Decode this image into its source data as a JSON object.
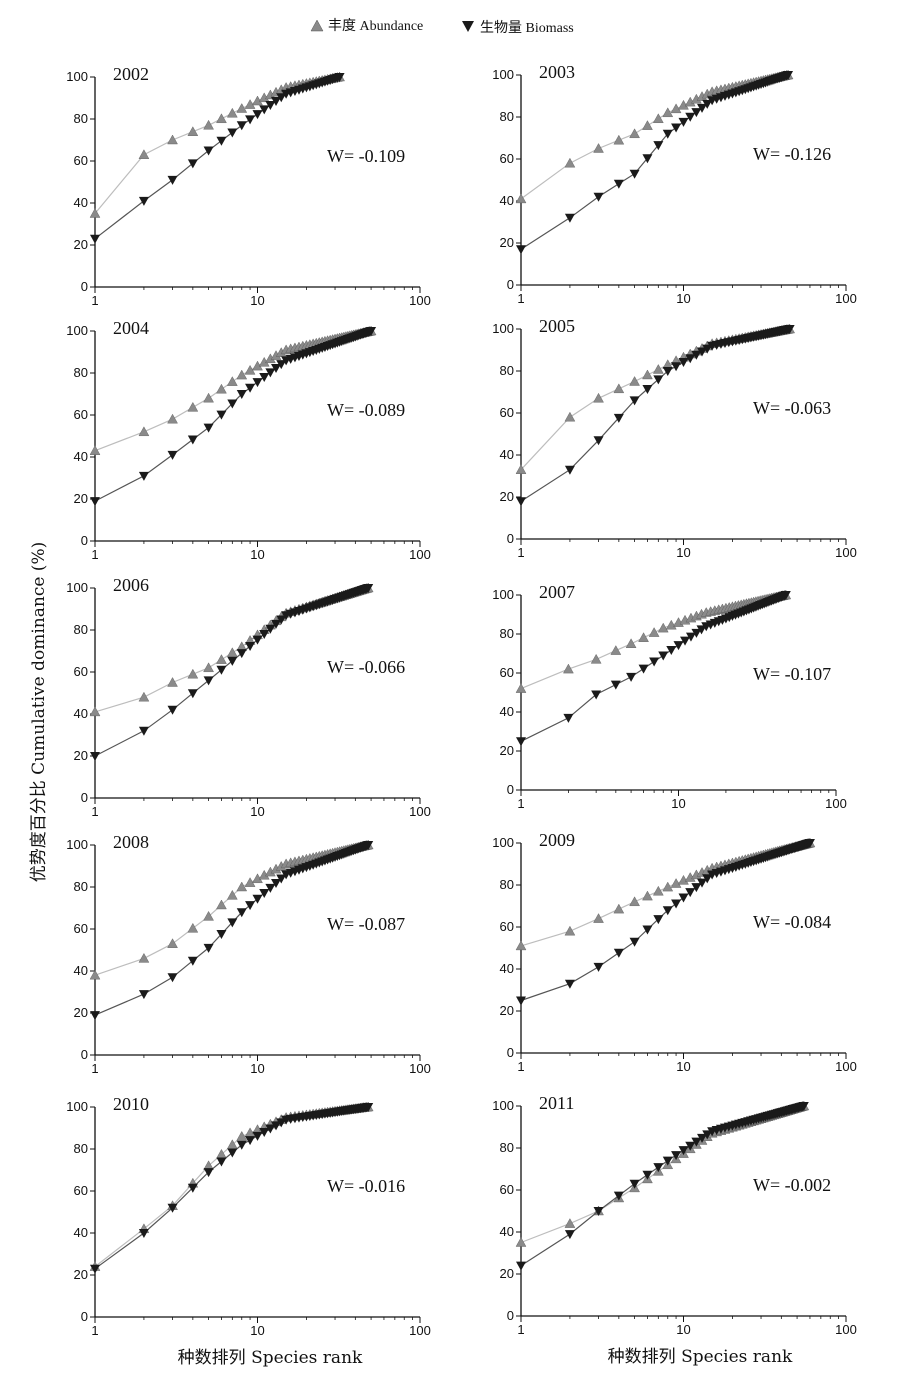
{
  "legend": {
    "abundance_label": "丰度 Abundance",
    "biomass_label": "生物量 Biomass"
  },
  "y_axis_title": "优势度百分比 Cumulative dominance (%)",
  "x_axis_title_left": "种数排列 Species rank",
  "x_axis_title_right": "种数排列 Species rank",
  "colors": {
    "abundance": "#8a8a8a",
    "abundance_line": "#bdbdbd",
    "biomass": "#1a1a1a",
    "biomass_line": "#555555",
    "axis": "#111111"
  },
  "chart_data": [
    {
      "type": "line",
      "title": "2002",
      "annotation": "W= -0.109",
      "xscale": "log",
      "xlim": [
        1,
        100
      ],
      "ylim": [
        0,
        100
      ],
      "xticks": [
        "1",
        "10",
        "100"
      ],
      "yticks": [
        "0",
        "20",
        "40",
        "60",
        "80",
        "100"
      ],
      "n_species": 32,
      "abundance_anchors": [
        [
          1,
          35
        ],
        [
          2,
          63
        ],
        [
          3,
          70
        ],
        [
          5,
          77
        ],
        [
          8,
          85
        ],
        [
          15,
          95
        ],
        [
          32,
          100
        ]
      ],
      "biomass_anchors": [
        [
          1,
          23
        ],
        [
          2,
          41
        ],
        [
          3,
          51
        ],
        [
          5,
          65
        ],
        [
          8,
          77
        ],
        [
          15,
          92
        ],
        [
          32,
          100
        ]
      ],
      "series": [
        {
          "name": "丰度 Abundance"
        },
        {
          "name": "生物量 Biomass"
        }
      ]
    },
    {
      "type": "line",
      "title": "2003",
      "annotation": "W= -0.126",
      "xscale": "log",
      "xlim": [
        1,
        100
      ],
      "ylim": [
        0,
        100
      ],
      "xticks": [
        "1",
        "10",
        "100"
      ],
      "yticks": [
        "0",
        "20",
        "40",
        "60",
        "80",
        "100"
      ],
      "n_species": 44,
      "abundance_anchors": [
        [
          1,
          41
        ],
        [
          2,
          58
        ],
        [
          3,
          65
        ],
        [
          5,
          72
        ],
        [
          8,
          82
        ],
        [
          15,
          92
        ],
        [
          44,
          100
        ]
      ],
      "biomass_anchors": [
        [
          1,
          17
        ],
        [
          2,
          32
        ],
        [
          3,
          42
        ],
        [
          5,
          53
        ],
        [
          8,
          72
        ],
        [
          15,
          88
        ],
        [
          44,
          100
        ]
      ],
      "series": [
        {
          "name": "丰度 Abundance"
        },
        {
          "name": "生物量 Biomass"
        }
      ]
    },
    {
      "type": "line",
      "title": "2004",
      "annotation": "W= -0.089",
      "xscale": "log",
      "xlim": [
        1,
        100
      ],
      "ylim": [
        0,
        100
      ],
      "xticks": [
        "1",
        "10",
        "100"
      ],
      "yticks": [
        "0",
        "20",
        "40",
        "60",
        "80",
        "100"
      ],
      "n_species": 50,
      "abundance_anchors": [
        [
          1,
          43
        ],
        [
          2,
          52
        ],
        [
          3,
          58
        ],
        [
          5,
          68
        ],
        [
          8,
          79
        ],
        [
          15,
          91
        ],
        [
          50,
          100
        ]
      ],
      "biomass_anchors": [
        [
          1,
          19
        ],
        [
          2,
          31
        ],
        [
          3,
          41
        ],
        [
          5,
          54
        ],
        [
          8,
          70
        ],
        [
          15,
          86
        ],
        [
          50,
          100
        ]
      ],
      "series": [
        {
          "name": "丰度 Abundance"
        },
        {
          "name": "生物量 Biomass"
        }
      ]
    },
    {
      "type": "line",
      "title": "2005",
      "annotation": "W= -0.063",
      "xscale": "log",
      "xlim": [
        1,
        100
      ],
      "ylim": [
        0,
        100
      ],
      "xticks": [
        "1",
        "10",
        "100"
      ],
      "yticks": [
        "0",
        "20",
        "40",
        "60",
        "80",
        "100"
      ],
      "n_species": 45,
      "abundance_anchors": [
        [
          1,
          33
        ],
        [
          2,
          58
        ],
        [
          3,
          67
        ],
        [
          5,
          75
        ],
        [
          8,
          83
        ],
        [
          15,
          93
        ],
        [
          45,
          100
        ]
      ],
      "biomass_anchors": [
        [
          1,
          18
        ],
        [
          2,
          33
        ],
        [
          3,
          47
        ],
        [
          5,
          66
        ],
        [
          8,
          80
        ],
        [
          15,
          92
        ],
        [
          45,
          100
        ]
      ],
      "series": [
        {
          "name": "丰度 Abundance"
        },
        {
          "name": "生物量 Biomass"
        }
      ]
    },
    {
      "type": "line",
      "title": "2006",
      "annotation": "W= -0.066",
      "xscale": "log",
      "xlim": [
        1,
        100
      ],
      "ylim": [
        0,
        100
      ],
      "xticks": [
        "1",
        "10",
        "100"
      ],
      "yticks": [
        "0",
        "20",
        "40",
        "60",
        "80",
        "100"
      ],
      "n_species": 48,
      "abundance_anchors": [
        [
          1,
          41
        ],
        [
          2,
          48
        ],
        [
          3,
          55
        ],
        [
          5,
          62
        ],
        [
          8,
          72
        ],
        [
          15,
          88
        ],
        [
          48,
          100
        ]
      ],
      "biomass_anchors": [
        [
          1,
          20
        ],
        [
          2,
          32
        ],
        [
          3,
          42
        ],
        [
          5,
          56
        ],
        [
          8,
          69
        ],
        [
          15,
          87
        ],
        [
          48,
          100
        ]
      ],
      "series": [
        {
          "name": "丰度 Abundance"
        },
        {
          "name": "生物量 Biomass"
        }
      ]
    },
    {
      "type": "line",
      "title": "2007",
      "annotation": "W= -0.107",
      "xscale": "log",
      "xlim": [
        1,
        100
      ],
      "ylim": [
        0,
        100
      ],
      "xticks": [
        "1",
        "10",
        "100"
      ],
      "yticks": [
        "0",
        "20",
        "40",
        "60",
        "80",
        "100"
      ],
      "n_species": 48,
      "abundance_anchors": [
        [
          1,
          52
        ],
        [
          2,
          62
        ],
        [
          3,
          67
        ],
        [
          5,
          75
        ],
        [
          8,
          83
        ],
        [
          15,
          91
        ],
        [
          48,
          100
        ]
      ],
      "biomass_anchors": [
        [
          1,
          25
        ],
        [
          2,
          37
        ],
        [
          3,
          49
        ],
        [
          5,
          58
        ],
        [
          8,
          69
        ],
        [
          15,
          84
        ],
        [
          48,
          100
        ]
      ],
      "series": [
        {
          "name": "丰度 Abundance"
        },
        {
          "name": "生物量 Biomass"
        }
      ]
    },
    {
      "type": "line",
      "title": "2008",
      "annotation": "W= -0.087",
      "xscale": "log",
      "xlim": [
        1,
        100
      ],
      "ylim": [
        0,
        100
      ],
      "xticks": [
        "1",
        "10",
        "100"
      ],
      "yticks": [
        "0",
        "20",
        "40",
        "60",
        "80",
        "100"
      ],
      "n_species": 48,
      "abundance_anchors": [
        [
          1,
          38
        ],
        [
          2,
          46
        ],
        [
          3,
          53
        ],
        [
          5,
          66
        ],
        [
          8,
          80
        ],
        [
          15,
          91
        ],
        [
          48,
          100
        ]
      ],
      "biomass_anchors": [
        [
          1,
          19
        ],
        [
          2,
          29
        ],
        [
          3,
          37
        ],
        [
          5,
          51
        ],
        [
          8,
          68
        ],
        [
          15,
          86
        ],
        [
          48,
          100
        ]
      ],
      "series": [
        {
          "name": "丰度 Abundance"
        },
        {
          "name": "生物量 Biomass"
        }
      ]
    },
    {
      "type": "line",
      "title": "2009",
      "annotation": "W= -0.084",
      "xscale": "log",
      "xlim": [
        1,
        100
      ],
      "ylim": [
        0,
        100
      ],
      "xticks": [
        "1",
        "10",
        "100"
      ],
      "yticks": [
        "0",
        "20",
        "40",
        "60",
        "80",
        "100"
      ],
      "n_species": 60,
      "abundance_anchors": [
        [
          1,
          51
        ],
        [
          2,
          58
        ],
        [
          3,
          64
        ],
        [
          5,
          72
        ],
        [
          8,
          79
        ],
        [
          15,
          88
        ],
        [
          60,
          100
        ]
      ],
      "biomass_anchors": [
        [
          1,
          25
        ],
        [
          2,
          33
        ],
        [
          3,
          41
        ],
        [
          5,
          53
        ],
        [
          8,
          68
        ],
        [
          15,
          85
        ],
        [
          60,
          100
        ]
      ],
      "series": [
        {
          "name": "丰度 Abundance"
        },
        {
          "name": "生物量 Biomass"
        }
      ]
    },
    {
      "type": "line",
      "title": "2010",
      "annotation": "W= -0.016",
      "xscale": "log",
      "xlim": [
        1,
        100
      ],
      "ylim": [
        0,
        100
      ],
      "xticks": [
        "1",
        "10",
        "100"
      ],
      "yticks": [
        "0",
        "20",
        "40",
        "60",
        "80",
        "100"
      ],
      "n_species": 48,
      "abundance_anchors": [
        [
          1,
          24
        ],
        [
          2,
          42
        ],
        [
          3,
          53
        ],
        [
          5,
          72
        ],
        [
          8,
          86
        ],
        [
          15,
          95
        ],
        [
          48,
          100
        ]
      ],
      "biomass_anchors": [
        [
          1,
          23
        ],
        [
          2,
          40
        ],
        [
          3,
          52
        ],
        [
          5,
          69
        ],
        [
          8,
          82
        ],
        [
          15,
          94
        ],
        [
          48,
          100
        ]
      ],
      "series": [
        {
          "name": "丰度 Abundance"
        },
        {
          "name": "生物量 Biomass"
        }
      ]
    },
    {
      "type": "line",
      "title": "2011",
      "annotation": "W= -0.002",
      "xscale": "log",
      "xlim": [
        1,
        100
      ],
      "ylim": [
        0,
        100
      ],
      "xticks": [
        "1",
        "10",
        "100"
      ],
      "yticks": [
        "0",
        "20",
        "40",
        "60",
        "80",
        "100"
      ],
      "n_species": 55,
      "abundance_anchors": [
        [
          1,
          35
        ],
        [
          2,
          44
        ],
        [
          3,
          50
        ],
        [
          5,
          61
        ],
        [
          8,
          72
        ],
        [
          15,
          87
        ],
        [
          55,
          100
        ]
      ],
      "biomass_anchors": [
        [
          1,
          24
        ],
        [
          2,
          39
        ],
        [
          3,
          50
        ],
        [
          5,
          63
        ],
        [
          8,
          74
        ],
        [
          15,
          88
        ],
        [
          55,
          100
        ]
      ],
      "series": [
        {
          "name": "丰度 Abundance"
        },
        {
          "name": "生物量 Biomass"
        }
      ]
    }
  ]
}
